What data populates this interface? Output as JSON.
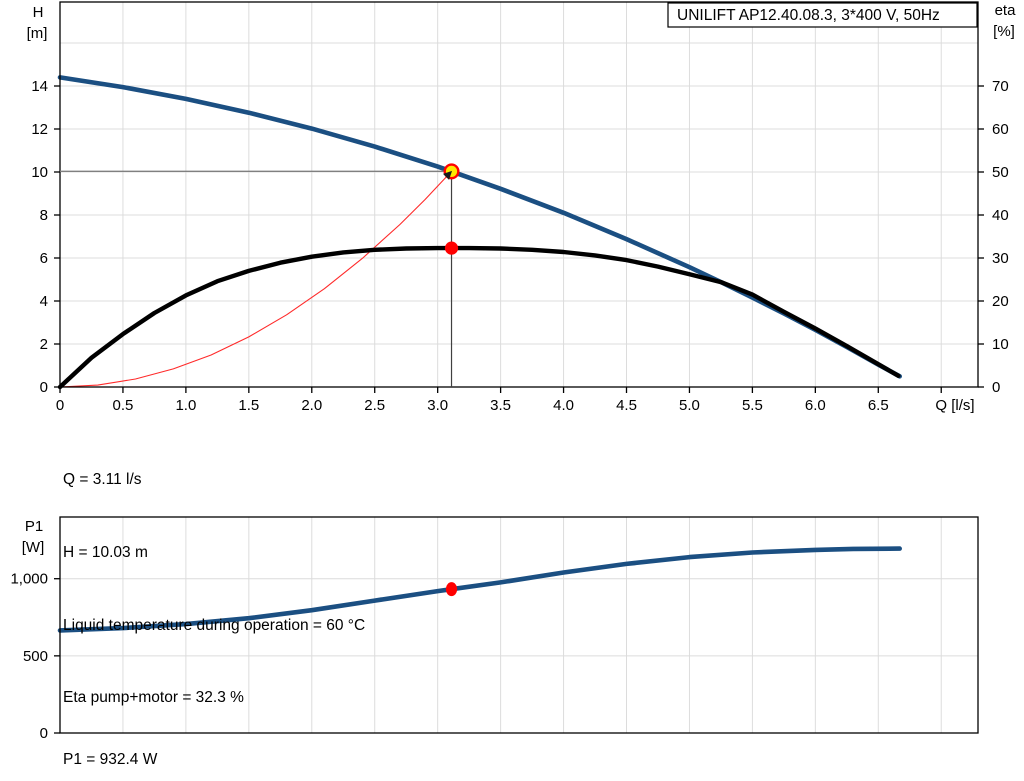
{
  "title_box": {
    "text": "UNILIFT AP12.40.08.3, 3*400 V, 50Hz"
  },
  "annotations": {
    "q": "Q = 3.11 l/s",
    "h": "H = 10.03 m",
    "liquid_temp": "Liquid temperature during operation = 60 °C",
    "eta": "Eta pump+motor = 32.3 %",
    "p1": "P1 = 932.4 W"
  },
  "colors": {
    "pump_curve_blue": "#1B4F82",
    "efficiency_curve_black": "#000000",
    "system_curve_red": "#FF2A2A",
    "marker_red": "#FF0000",
    "marker_yellow": "#FFE800",
    "grid": "#DCDCDC",
    "frame": "#000000",
    "helper_horizontal": "#808080",
    "helper_vertical": "#404040"
  },
  "chart_data": [
    {
      "id": "qh_chart",
      "type": "line",
      "title": "UNILIFT AP12.40.08.3, 3*400 V, 50Hz",
      "grid": true,
      "legend": "none",
      "x_axis": {
        "label": "Q [l/s]",
        "min": 0,
        "max": 7.29,
        "grid_step": 0.5,
        "tick_values": [
          0,
          0.5,
          1.0,
          1.5,
          2.0,
          2.5,
          3.0,
          3.5,
          4.0,
          4.5,
          5.0,
          5.5,
          6.0,
          6.5,
          7.0
        ],
        "tick_labels": [
          "0",
          "0.5",
          "1.0",
          "1.5",
          "2.0",
          "2.5",
          "3.0",
          "3.5",
          "4.0",
          "4.5",
          "5.0",
          "5.5",
          "6.0",
          "6.5",
          ""
        ]
      },
      "y_axis_left": {
        "label_line1": "H",
        "label_line2": "[m]",
        "min": 0,
        "max": 17.9,
        "grid_step": 2,
        "tick_values": [
          0,
          2,
          4,
          6,
          8,
          10,
          12,
          14
        ],
        "tick_labels": [
          "0",
          "2",
          "4",
          "6",
          "8",
          "10",
          "12",
          "14"
        ]
      },
      "y_axis_right": {
        "label_line1": "eta",
        "label_line2": "[%]",
        "min": 0,
        "max": 89.5,
        "h_per_eta_pct": 0.2,
        "tick_values": [
          0,
          10,
          20,
          30,
          40,
          50,
          60,
          70
        ],
        "tick_labels": [
          "0",
          "10",
          "20",
          "30",
          "40",
          "50",
          "60",
          "70"
        ]
      },
      "series": [
        {
          "name": "pump-curve",
          "unit": "H [m]",
          "points": [
            [
              0,
              14.4
            ],
            [
              0.5,
              13.95
            ],
            [
              1,
              13.4
            ],
            [
              1.5,
              12.76
            ],
            [
              2,
              12.02
            ],
            [
              2.5,
              11.18
            ],
            [
              3,
              10.25
            ],
            [
              3.11,
              10.03
            ],
            [
              3.5,
              9.22
            ],
            [
              4,
              8.1
            ],
            [
              4.5,
              6.88
            ],
            [
              5,
              5.57
            ],
            [
              5.25,
              4.88
            ],
            [
              5.5,
              4.16
            ],
            [
              5.75,
              3.42
            ],
            [
              6,
              2.66
            ],
            [
              6.25,
              1.86
            ],
            [
              6.5,
              1.04
            ],
            [
              6.67,
              0.5
            ]
          ]
        },
        {
          "name": "efficiency-curve",
          "unit": "eta [%]",
          "points": [
            [
              0,
              0
            ],
            [
              0.25,
              6.8
            ],
            [
              0.5,
              12.3
            ],
            [
              0.75,
              17.2
            ],
            [
              1,
              21.3
            ],
            [
              1.25,
              24.6
            ],
            [
              1.5,
              27.0
            ],
            [
              1.75,
              28.9
            ],
            [
              2,
              30.3
            ],
            [
              2.25,
              31.3
            ],
            [
              2.5,
              31.9
            ],
            [
              2.75,
              32.2
            ],
            [
              3,
              32.3
            ],
            [
              3.25,
              32.3
            ],
            [
              3.5,
              32.2
            ],
            [
              3.75,
              31.9
            ],
            [
              4,
              31.4
            ],
            [
              4.25,
              30.6
            ],
            [
              4.5,
              29.5
            ],
            [
              4.75,
              28.0
            ],
            [
              5,
              26.2
            ],
            [
              5.25,
              24.4
            ],
            [
              5.5,
              21.5
            ],
            [
              5.75,
              17.5
            ],
            [
              6,
              13.6
            ],
            [
              6.25,
              9.5
            ],
            [
              6.5,
              5.3
            ],
            [
              6.66,
              2.6
            ]
          ]
        },
        {
          "name": "system-curve",
          "unit": "H [m]",
          "points": [
            [
              0,
              0
            ],
            [
              0.3,
              0.09
            ],
            [
              0.6,
              0.37
            ],
            [
              0.9,
              0.84
            ],
            [
              1.2,
              1.49
            ],
            [
              1.5,
              2.33
            ],
            [
              1.8,
              3.36
            ],
            [
              2.1,
              4.57
            ],
            [
              2.4,
              5.97
            ],
            [
              2.7,
              7.56
            ],
            [
              2.9,
              8.72
            ],
            [
              3.11,
              10.03
            ]
          ]
        }
      ],
      "duty_point": {
        "q": 3.11,
        "h": 10.03,
        "eta_pct": 32.3
      }
    },
    {
      "id": "p1_chart",
      "type": "line",
      "grid": true,
      "legend": "none",
      "x_axis": {
        "label": "",
        "min": 0,
        "max": 7.29,
        "grid_step": 0.5
      },
      "y_axis_left": {
        "label_line1": "P1",
        "label_line2": "[W]",
        "min": 0,
        "max": 1400,
        "grid_step": 500,
        "tick_values": [
          0,
          500,
          1000
        ],
        "tick_labels": [
          "0",
          "500",
          "1,000"
        ]
      },
      "series": [
        {
          "name": "power-curve",
          "unit": "P1 [W]",
          "points": [
            [
              0,
              665
            ],
            [
              0.5,
              680
            ],
            [
              1,
              706
            ],
            [
              1.5,
              744
            ],
            [
              2,
              796
            ],
            [
              2.5,
              858
            ],
            [
              3,
              920
            ],
            [
              3.11,
              932
            ],
            [
              3.5,
              976
            ],
            [
              4,
              1040
            ],
            [
              4.5,
              1096
            ],
            [
              5,
              1140
            ],
            [
              5.5,
              1170
            ],
            [
              6,
              1187
            ],
            [
              6.3,
              1193
            ],
            [
              6.67,
              1195
            ]
          ]
        }
      ],
      "duty_point": {
        "q": 3.11,
        "p1_w": 932.4
      }
    }
  ]
}
